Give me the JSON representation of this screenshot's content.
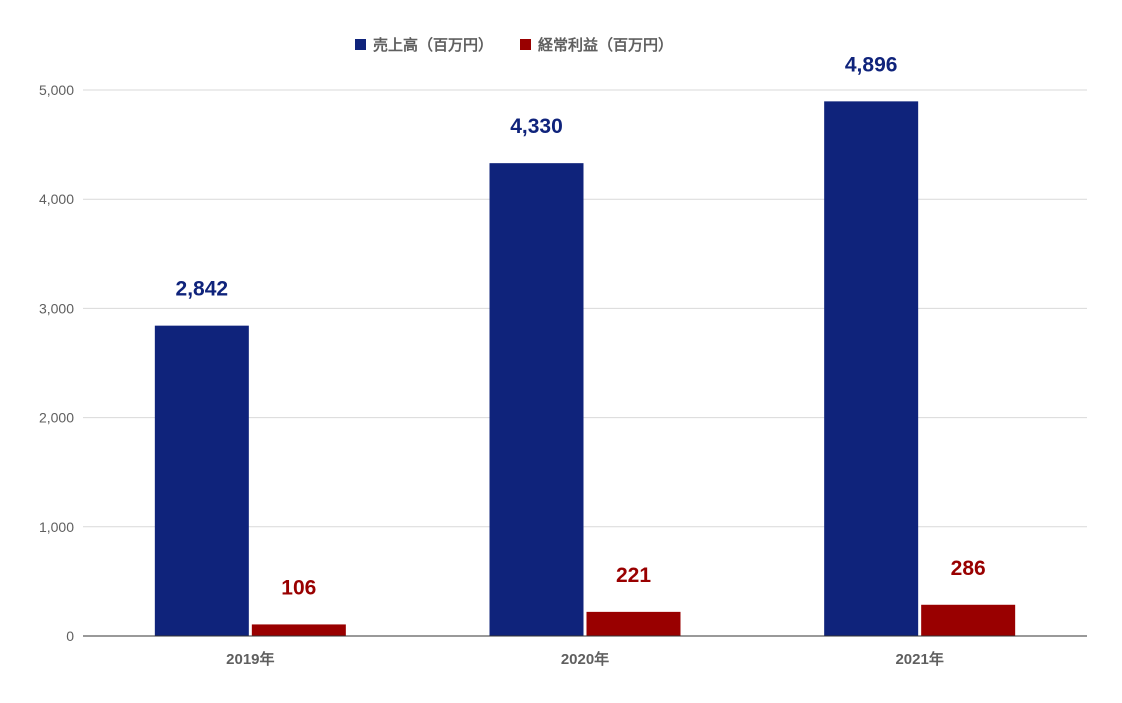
{
  "chart_data": {
    "type": "bar",
    "categories": [
      "2019年",
      "2020年",
      "2021年"
    ],
    "series": [
      {
        "name": "売上高（百万円）",
        "values": [
          2842,
          4330,
          4896
        ],
        "color": "#0f237b"
      },
      {
        "name": "経常利益（百万円）",
        "values": [
          106,
          221,
          286
        ],
        "color": "#990000"
      }
    ],
    "data_labels": [
      [
        "2,842",
        "4,330",
        "4,896"
      ],
      [
        "106",
        "221",
        "286"
      ]
    ],
    "ylim": [
      0,
      5000
    ],
    "yticks": [
      0,
      1000,
      2000,
      3000,
      4000,
      5000
    ],
    "ytick_labels": [
      "0",
      "1,000",
      "2,000",
      "3,000",
      "4,000",
      "5,000"
    ],
    "grid": true,
    "legend_position": "top"
  }
}
